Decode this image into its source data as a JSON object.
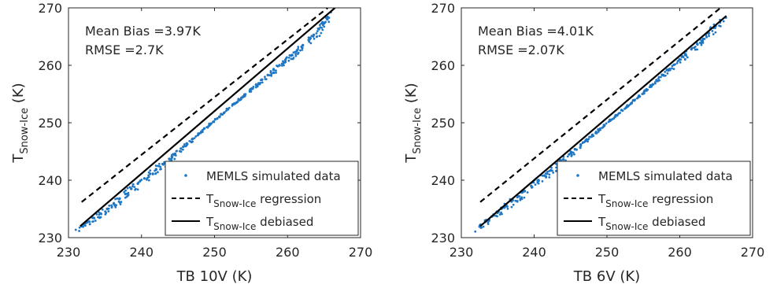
{
  "chart_data": [
    {
      "type": "scatter",
      "xlabel": "TB 10V (K)",
      "ylabel_main": "T",
      "ylabel_sub": "Snow-Ice",
      "ylabel_unit": "(K)",
      "xlim": [
        230,
        270
      ],
      "ylim": [
        230,
        270
      ],
      "xticks": [
        "230",
        "240",
        "250",
        "260",
        "270"
      ],
      "yticks": [
        "230",
        "240",
        "250",
        "260",
        "270"
      ],
      "annotations": [
        "Mean Bias =3.97K",
        "RMSE =2.7K"
      ],
      "legend": {
        "placement": "bottom-right",
        "entries": [
          {
            "text": "MEMLS simulated data",
            "style": "marker"
          },
          {
            "main": "T",
            "sub": "Snow-Ice",
            "text": "regression",
            "style": "dashed"
          },
          {
            "main": "T",
            "sub": "Snow-Ice",
            "text": "debiased",
            "style": "solid"
          }
        ]
      },
      "series": [
        {
          "name": "MEMLS simulated data",
          "kind": "points",
          "x": [
            231.8,
            232.6,
            233.5,
            234.4,
            235.3,
            236.2,
            237.0,
            237.8,
            238.6,
            239.5,
            240.4,
            241.2,
            242.0,
            242.9,
            243.8,
            244.6,
            245.4,
            246.2,
            247.0,
            247.8,
            248.6,
            249.3,
            250.1,
            250.9,
            251.7,
            252.5,
            253.3,
            254.1,
            254.9,
            255.7,
            256.5,
            257.3,
            258.1,
            258.9,
            259.7,
            260.5,
            261.3,
            262.1,
            262.9,
            263.6,
            264.3,
            264.9,
            265.5
          ],
          "y": [
            232.0,
            232.7,
            233.4,
            234.2,
            235.0,
            235.9,
            236.8,
            237.6,
            238.5,
            239.4,
            240.3,
            241.1,
            241.9,
            242.8,
            243.7,
            244.6,
            245.5,
            246.4,
            247.2,
            248.1,
            249.0,
            249.8,
            250.6,
            251.5,
            252.4,
            253.2,
            254.1,
            254.9,
            255.8,
            256.6,
            257.5,
            258.3,
            259.2,
            260.0,
            260.9,
            261.7,
            262.6,
            263.5,
            264.4,
            265.3,
            266.3,
            267.3,
            268.4
          ]
        },
        {
          "name": "T Snow-Ice regression",
          "kind": "dashed",
          "x": [
            231.8,
            265.5
          ],
          "y": [
            236.2,
            270.0
          ]
        },
        {
          "name": "T Snow-Ice debiased",
          "kind": "solid",
          "x": [
            231.6,
            266.5
          ],
          "y": [
            232.0,
            270.0
          ]
        }
      ]
    },
    {
      "type": "scatter",
      "xlabel": "TB 6V (K)",
      "ylabel_main": "T",
      "ylabel_sub": "Snow-Ice",
      "ylabel_unit": "(K)",
      "xlim": [
        230,
        270
      ],
      "ylim": [
        230,
        270
      ],
      "xticks": [
        "230",
        "240",
        "250",
        "260",
        "270"
      ],
      "yticks": [
        "230",
        "240",
        "250",
        "260",
        "270"
      ],
      "annotations": [
        "Mean Bias =4.01K",
        "RMSE =2.07K"
      ],
      "legend": {
        "placement": "bottom-right",
        "entries": [
          {
            "text": "MEMLS simulated data",
            "style": "marker"
          },
          {
            "main": "T",
            "sub": "Snow-Ice",
            "text": "regression",
            "style": "dashed"
          },
          {
            "main": "T",
            "sub": "Snow-Ice",
            "text": "debiased",
            "style": "solid"
          }
        ]
      },
      "series": [
        {
          "name": "MEMLS simulated data",
          "kind": "points",
          "x": [
            232.6,
            233.4,
            234.2,
            235.1,
            236.0,
            236.9,
            237.8,
            238.7,
            239.6,
            240.5,
            241.4,
            242.3,
            243.2,
            244.0,
            244.8,
            245.6,
            246.4,
            247.2,
            248.0,
            248.8,
            249.6,
            250.4,
            251.2,
            252.0,
            252.8,
            253.6,
            254.4,
            255.2,
            256.0,
            256.8,
            257.6,
            258.4,
            259.2,
            260.0,
            260.8,
            261.6,
            262.4,
            263.2,
            264.0,
            264.8,
            265.6
          ],
          "y": [
            232.1,
            232.9,
            233.7,
            234.5,
            235.4,
            236.3,
            237.2,
            238.1,
            239.0,
            239.9,
            240.8,
            241.7,
            242.7,
            243.6,
            244.5,
            245.4,
            246.2,
            247.1,
            247.9,
            248.8,
            249.6,
            250.5,
            251.3,
            252.2,
            253.0,
            253.9,
            254.7,
            255.6,
            256.5,
            257.4,
            258.3,
            259.2,
            260.1,
            261.0,
            261.9,
            262.8,
            263.7,
            264.6,
            265.6,
            266.7,
            267.8
          ]
        },
        {
          "name": "T Snow-Ice regression",
          "kind": "dashed",
          "x": [
            232.6,
            265.6
          ],
          "y": [
            236.2,
            270.0
          ]
        },
        {
          "name": "T Snow-Ice debiased",
          "kind": "solid",
          "x": [
            232.6,
            266.4
          ],
          "y": [
            232.0,
            268.6
          ]
        }
      ]
    }
  ]
}
